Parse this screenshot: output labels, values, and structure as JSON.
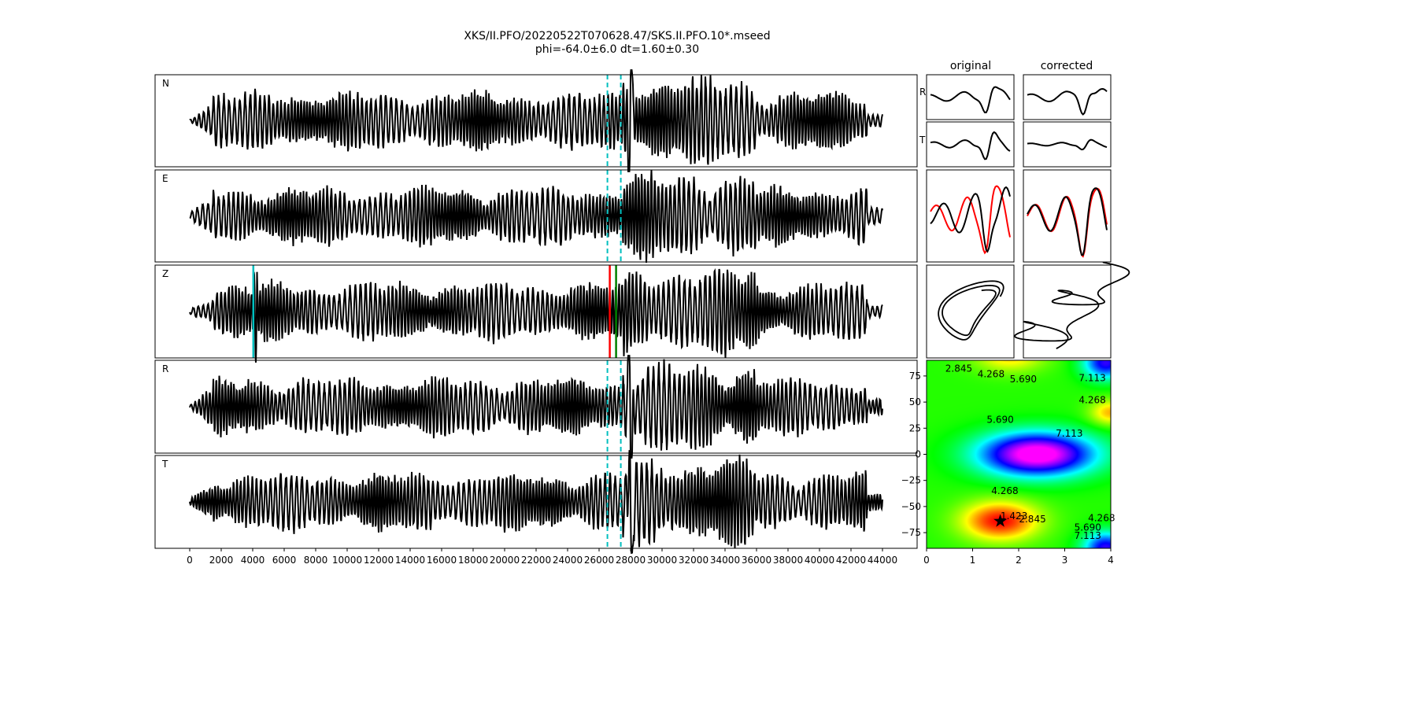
{
  "title": "XKS/II.PFO/20220522T070628.47/SKS.II.PFO.10*.mseed",
  "subtitle": "phi=-64.0±6.0 dt=1.60±0.30",
  "chart_data": [
    {
      "type": "line",
      "panels": [
        "N",
        "E",
        "Z",
        "R",
        "T"
      ],
      "xticks": [
        "0",
        "2000",
        "4000",
        "6000",
        "8000",
        "10000",
        "12000",
        "14000",
        "16000",
        "18000",
        "20000",
        "22000",
        "24000",
        "26000",
        "28000",
        "30000",
        "32000",
        "34000",
        "36000",
        "38000",
        "40000",
        "42000",
        "44000"
      ],
      "xlim": [
        -2200,
        46200
      ],
      "window_markers": {
        "start": 26530,
        "end": 27380,
        "color": "#00bfbf",
        "style": "dashed",
        "panels": [
          "N",
          "E",
          "R",
          "T"
        ]
      },
      "z_markers": [
        {
          "x": 4040,
          "color": "#00bfbf"
        },
        {
          "x": 26680,
          "color": "#ff0000"
        },
        {
          "x": 27080,
          "color": "#008000"
        }
      ],
      "trace_color": "#000000"
    },
    {
      "type": "line",
      "columns": [
        "original",
        "corrected"
      ],
      "row_labels": [
        "R",
        "T"
      ],
      "series_colors": [
        "#ff0000",
        "#000000"
      ]
    },
    {
      "type": "heatmap",
      "xlim": [
        0,
        4
      ],
      "ylim": [
        -90,
        90
      ],
      "xticks": [
        "0",
        "1",
        "2",
        "3",
        "4"
      ],
      "yticks": [
        "75",
        "50",
        "25",
        "0",
        "−25",
        "−50",
        "−75"
      ],
      "contour_levels": [
        "1.423",
        "2.845",
        "4.268",
        "5.690",
        "7.113"
      ],
      "best": {
        "dt": 1.6,
        "phi": -64
      },
      "colormap": "gist_rainbow"
    }
  ]
}
